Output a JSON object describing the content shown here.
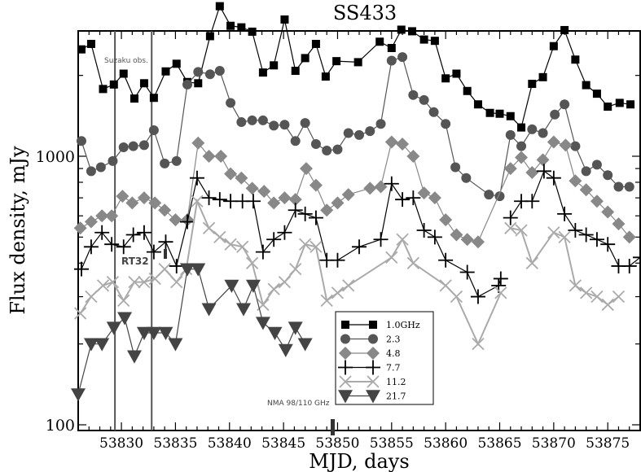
{
  "chart_data": {
    "type": "scatter",
    "title": "SS433",
    "xlabel": "MJD, days",
    "ylabel": "Flux density, mJy",
    "xlim": [
      53826,
      53878
    ],
    "ylim": [
      100,
      4000
    ],
    "yscale": "log",
    "xticks": [
      53830,
      53835,
      53840,
      53845,
      53850,
      53855,
      53860,
      53865,
      53870,
      53875
    ],
    "yticks": [
      100,
      1000
    ],
    "grid": false,
    "legend_position": "bottom-center",
    "annotations": {
      "suzaku": "Suzaku obs.",
      "rt32": "RT32",
      "nma": "NMA 98/110 GHz"
    },
    "vlines": [
      53829.4,
      53832.8
    ],
    "series": [
      {
        "name": "1.0GHz",
        "color": "#000000",
        "marker": "square",
        "connected": "all",
        "points": [
          [
            53826.3,
            2500
          ],
          [
            53827.2,
            2620
          ],
          [
            53828.3,
            1780
          ],
          [
            53829.3,
            1850
          ],
          [
            53830.2,
            2030
          ],
          [
            53831.2,
            1640
          ],
          [
            53832.1,
            1870
          ],
          [
            53833.0,
            1650
          ],
          [
            53834.1,
            2070
          ],
          [
            53835.1,
            2210
          ],
          [
            53836.1,
            1890
          ],
          [
            53837.1,
            1870
          ],
          [
            53838.2,
            2800
          ],
          [
            53839.1,
            3620
          ],
          [
            53840.1,
            3060
          ],
          [
            53841.1,
            3020
          ],
          [
            53842.1,
            2910
          ],
          [
            53843.1,
            2050
          ],
          [
            53844.1,
            2180
          ],
          [
            53845.1,
            3230
          ],
          [
            53846.1,
            2080
          ],
          [
            53847.0,
            2320
          ],
          [
            53848.0,
            2620
          ],
          [
            53848.9,
            1980
          ],
          [
            53849.9,
            2260
          ],
          [
            53851.9,
            2240
          ],
          [
            53853.9,
            2670
          ],
          [
            53855.0,
            2530
          ],
          [
            53855.9,
            2960
          ],
          [
            53856.9,
            2920
          ],
          [
            53858.0,
            2720
          ],
          [
            53859.0,
            2690
          ],
          [
            53860.0,
            1950
          ],
          [
            53861.0,
            2030
          ],
          [
            53862.0,
            1750
          ],
          [
            53863.0,
            1560
          ],
          [
            53864.1,
            1450
          ],
          [
            53865.0,
            1440
          ],
          [
            53866.0,
            1410
          ],
          [
            53867.0,
            1280
          ],
          [
            53868.0,
            1860
          ],
          [
            53869.0,
            1970
          ],
          [
            53870.0,
            2570
          ],
          [
            53871.0,
            2950
          ],
          [
            53872.0,
            2290
          ],
          [
            53873.0,
            1840
          ],
          [
            53874.0,
            1710
          ],
          [
            53875.0,
            1530
          ],
          [
            53876.1,
            1580
          ],
          [
            53877.1,
            1560
          ]
        ]
      },
      {
        "name": "2.3",
        "color": "#555555",
        "marker": "circle",
        "connected": "all",
        "points": [
          [
            53826.3,
            1140
          ],
          [
            53827.2,
            880
          ],
          [
            53828.1,
            910
          ],
          [
            53829.2,
            960
          ],
          [
            53830.2,
            1080
          ],
          [
            53831.1,
            1090
          ],
          [
            53832.1,
            1100
          ],
          [
            53833.0,
            1250
          ],
          [
            53834.0,
            940
          ],
          [
            53835.1,
            960
          ],
          [
            53836.1,
            1850
          ],
          [
            53837.1,
            2060
          ],
          [
            53838.2,
            2020
          ],
          [
            53839.1,
            2080
          ],
          [
            53840.1,
            1580
          ],
          [
            53841.1,
            1340
          ],
          [
            53842.1,
            1360
          ],
          [
            53843.1,
            1360
          ],
          [
            53844.1,
            1300
          ],
          [
            53845.1,
            1310
          ],
          [
            53846.1,
            1140
          ],
          [
            53847.0,
            1330
          ],
          [
            53848.0,
            1110
          ],
          [
            53849.0,
            1050
          ],
          [
            53850.0,
            1060
          ],
          [
            53851.0,
            1220
          ],
          [
            53852.0,
            1200
          ],
          [
            53853.0,
            1240
          ],
          [
            53854.0,
            1320
          ],
          [
            53855.0,
            2270
          ],
          [
            53856.0,
            2340
          ],
          [
            53857.0,
            1690
          ],
          [
            53858.0,
            1620
          ],
          [
            53858.9,
            1460
          ],
          [
            53860.0,
            1320
          ],
          [
            53860.9,
            910
          ],
          [
            53861.9,
            830
          ],
          [
            53864.0,
            720
          ],
          [
            53865.0,
            710
          ],
          [
            53866.0,
            1200
          ],
          [
            53867.0,
            1090
          ],
          [
            53868.0,
            1260
          ],
          [
            53869.0,
            1220
          ],
          [
            53870.1,
            1430
          ],
          [
            53871.0,
            1560
          ],
          [
            53872.0,
            1090
          ],
          [
            53873.0,
            880
          ],
          [
            53874.0,
            930
          ],
          [
            53875.0,
            850
          ],
          [
            53876.0,
            770
          ],
          [
            53877.0,
            770
          ]
        ]
      },
      {
        "name": "4.8",
        "color": "#888888",
        "marker": "diamond",
        "connected": "all",
        "points": [
          [
            53826.2,
            540
          ],
          [
            53827.2,
            570
          ],
          [
            53828.2,
            600
          ],
          [
            53829.1,
            600
          ],
          [
            53830.1,
            710
          ],
          [
            53831.0,
            670
          ],
          [
            53832.1,
            700
          ],
          [
            53833.1,
            670
          ],
          [
            53834.0,
            630
          ],
          [
            53835.0,
            580
          ],
          [
            53836.1,
            580
          ],
          [
            53837.1,
            1120
          ],
          [
            53838.1,
            1000
          ],
          [
            53839.2,
            1000
          ],
          [
            53840.1,
            860
          ],
          [
            53841.1,
            830
          ],
          [
            53842.1,
            760
          ],
          [
            53843.2,
            740
          ],
          [
            53844.1,
            670
          ],
          [
            53845.1,
            700
          ],
          [
            53846.1,
            690
          ],
          [
            53847.1,
            900
          ],
          [
            53848.0,
            780
          ],
          [
            53849.0,
            630
          ],
          [
            53850.0,
            670
          ],
          [
            53851.0,
            720
          ],
          [
            53853.0,
            760
          ],
          [
            53854.0,
            770
          ],
          [
            53855.0,
            1130
          ],
          [
            53856.0,
            1110
          ],
          [
            53857.0,
            1000
          ],
          [
            53858.0,
            730
          ],
          [
            53859.0,
            700
          ],
          [
            53860.0,
            580
          ],
          [
            53861.0,
            510
          ],
          [
            53862.0,
            490
          ],
          [
            53863.0,
            480
          ],
          [
            53866.0,
            900
          ],
          [
            53867.0,
            990
          ],
          [
            53868.0,
            870
          ],
          [
            53869.0,
            970
          ],
          [
            53870.0,
            1130
          ],
          [
            53871.1,
            1100
          ],
          [
            53872.0,
            810
          ],
          [
            53873.0,
            750
          ],
          [
            53874.0,
            680
          ],
          [
            53875.0,
            620
          ],
          [
            53876.0,
            560
          ],
          [
            53877.0,
            500
          ]
        ]
      },
      {
        "name": "7.7",
        "color": "#000000",
        "marker": "plus",
        "connected": "segments",
        "segments": [
          [
            [
              53826.3,
              380
            ],
            [
              53827.2,
              460
            ],
            [
              53828.2,
              520
            ],
            [
              53829.1,
              470
            ],
            [
              53830.2,
              460
            ],
            [
              53831.1,
              510
            ],
            [
              53832.1,
              520
            ],
            [
              53833.0,
              440
            ],
            [
              53834.1,
              480
            ],
            [
              53835.1,
              390
            ],
            [
              53836.1,
              570
            ],
            [
              53837.0,
              830
            ],
            [
              53838.1,
              700
            ],
            [
              53839.1,
              690
            ],
            [
              53840.1,
              680
            ],
            [
              53841.2,
              680
            ],
            [
              53842.2,
              680
            ],
            [
              53843.1,
              440
            ],
            [
              53844.1,
              490
            ],
            [
              53845.1,
              520
            ],
            [
              53846.1,
              630
            ],
            [
              53847.0,
              610
            ],
            [
              53848.0,
              590
            ],
            [
              53849.0,
              410
            ],
            [
              53850.0,
              410
            ],
            [
              53852.0,
              460
            ],
            [
              53854.0,
              490
            ],
            [
              53855.0,
              790
            ],
            [
              53856.0,
              690
            ],
            [
              53857.0,
              700
            ],
            [
              53858.0,
              530
            ],
            [
              53859.0,
              500
            ],
            [
              53860.0,
              410
            ],
            [
              53862.0,
              370
            ],
            [
              53863.0,
              300
            ],
            [
              53864.9,
              330
            ],
            [
              53865.1,
              350
            ]
          ],
          [
            [
              53866.0,
              590
            ],
            [
              53867.0,
              680
            ],
            [
              53868.0,
              680
            ],
            [
              53869.1,
              880
            ],
            [
              53870.0,
              830
            ],
            [
              53871.0,
              610
            ],
            [
              53872.0,
              530
            ],
            [
              53873.0,
              510
            ],
            [
              53874.0,
              490
            ],
            [
              53875.0,
              470
            ],
            [
              53876.0,
              390
            ],
            [
              53877.0,
              390
            ],
            [
              53878.0,
              420
            ]
          ]
        ]
      },
      {
        "name": "11.2",
        "color": "#aaaaaa",
        "marker": "cross",
        "connected": "segments",
        "segments": [
          [
            [
              53826.2,
              260
            ],
            [
              53827.2,
              300
            ],
            [
              53828.3,
              330
            ],
            [
              53829.2,
              340
            ],
            [
              53830.2,
              290
            ],
            [
              53831.2,
              340
            ],
            [
              53832.1,
              340
            ],
            [
              53833.1,
              350
            ],
            [
              53834.0,
              380
            ],
            [
              53835.1,
              340
            ],
            [
              53836.0,
              380
            ],
            [
              53837.0,
              680
            ],
            [
              53838.1,
              540
            ],
            [
              53839.1,
              500
            ],
            [
              53840.1,
              470
            ],
            [
              53841.2,
              460
            ],
            [
              53842.1,
              400
            ],
            [
              53843.1,
              280
            ],
            [
              53844.1,
              320
            ],
            [
              53845.1,
              340
            ],
            [
              53846.1,
              380
            ],
            [
              53847.0,
              470
            ],
            [
              53848.0,
              460
            ],
            [
              53849.0,
              290
            ],
            [
              53850.0,
              310
            ],
            [
              53851.0,
              330
            ],
            [
              53855.0,
              420
            ],
            [
              53856.0,
              490
            ],
            [
              53857.0,
              400
            ],
            [
              53860.0,
              330
            ],
            [
              53861.0,
              300
            ],
            [
              53863.0,
              200
            ],
            [
              53865.1,
              310
            ]
          ],
          [
            [
              53866.0,
              540
            ],
            [
              53867.0,
              530
            ],
            [
              53868.0,
              400
            ],
            [
              53870.0,
              520
            ],
            [
              53871.0,
              500
            ],
            [
              53872.0,
              330
            ],
            [
              53873.0,
              310
            ],
            [
              53874.0,
              300
            ],
            [
              53875.0,
              280
            ],
            [
              53876.0,
              300
            ]
          ]
        ]
      },
      {
        "name": "21.7",
        "color": "#444444",
        "marker": "triangle-down",
        "connected": "segments",
        "segments": [
          [
            [
              53826.0,
              130
            ],
            [
              53827.2,
              200
            ],
            [
              53828.2,
              200
            ],
            [
              53829.3,
              230
            ],
            [
              53830.3,
              250
            ],
            [
              53831.2,
              180
            ],
            [
              53832.1,
              220
            ],
            [
              53833.0,
              220
            ],
            [
              53834.1,
              220
            ],
            [
              53835.0,
              200
            ],
            [
              53836.1,
              380
            ],
            [
              53837.1,
              380
            ],
            [
              53838.1,
              270
            ],
            [
              53840.2,
              330
            ],
            [
              53841.3,
              270
            ],
            [
              53842.2,
              330
            ],
            [
              53843.1,
              240
            ],
            [
              53844.2,
              220
            ],
            [
              53845.2,
              190
            ],
            [
              53846.1,
              230
            ],
            [
              53847.0,
              200
            ]
          ]
        ]
      }
    ]
  }
}
